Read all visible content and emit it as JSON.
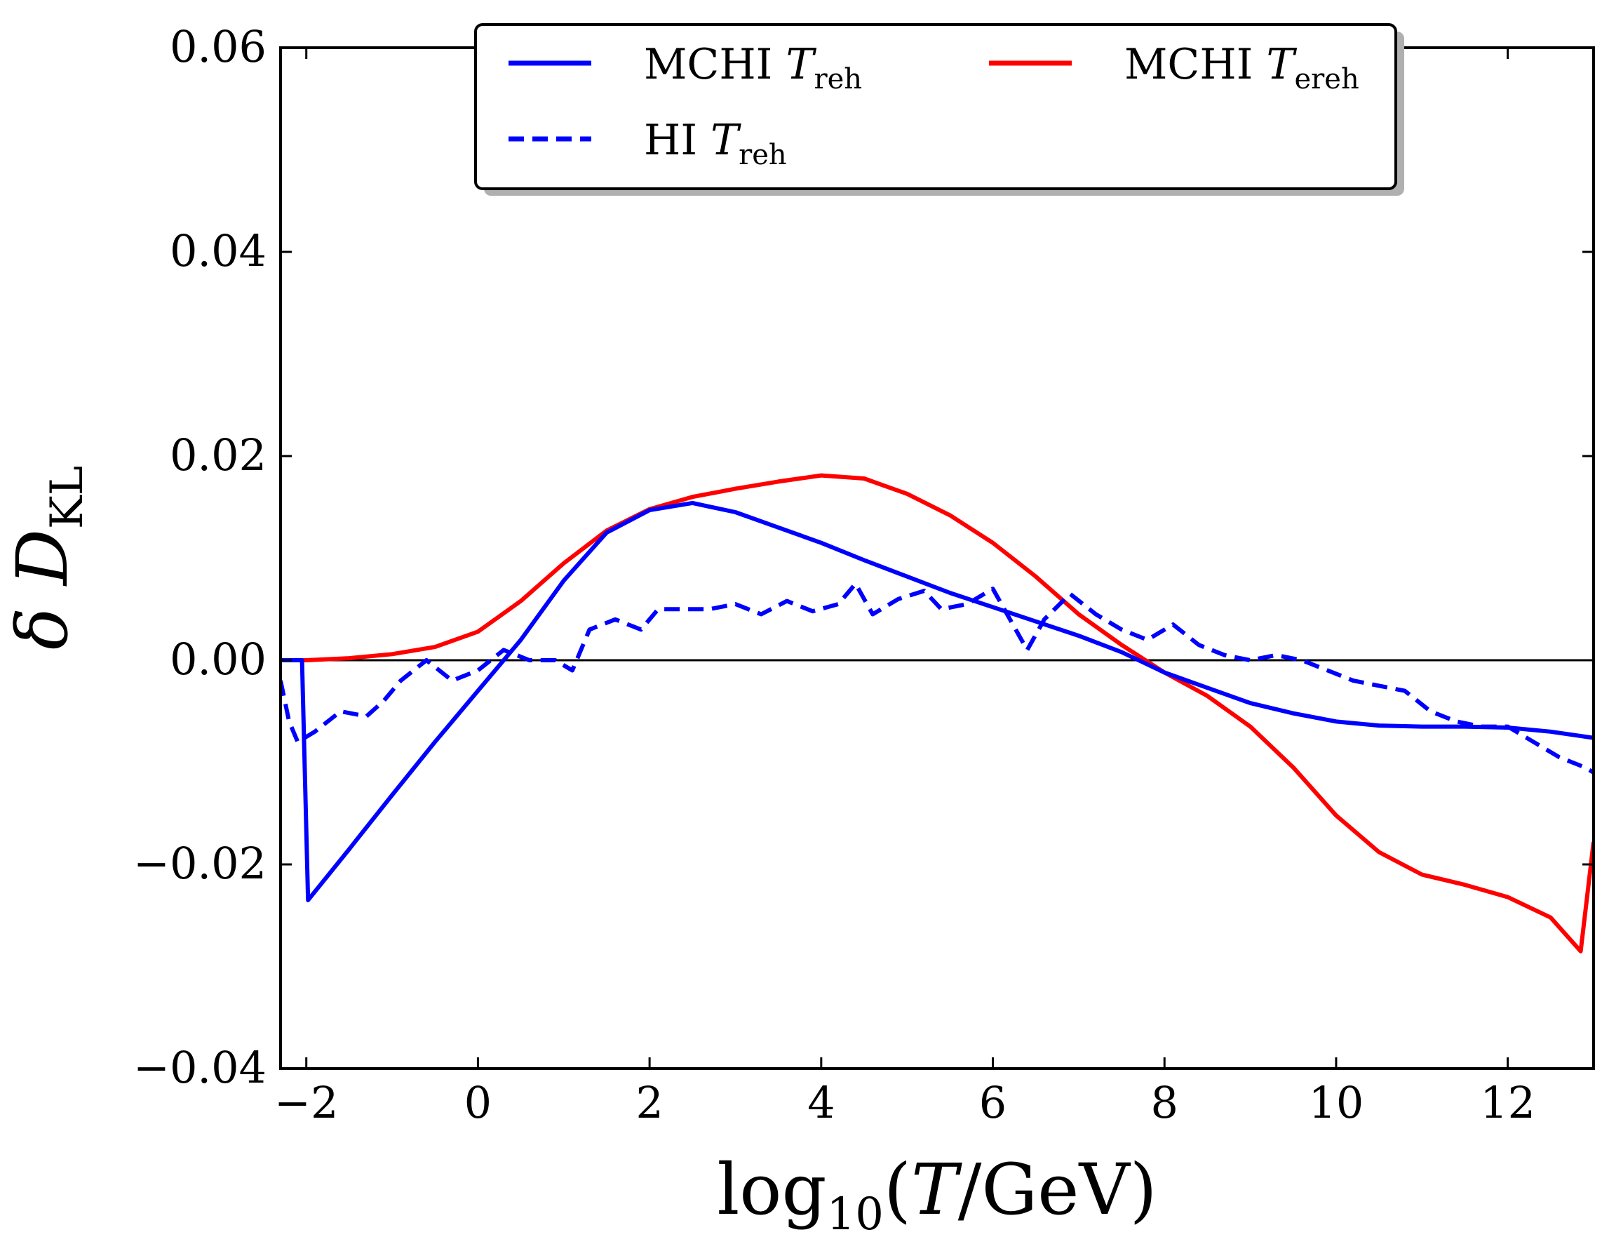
{
  "chart_data": {
    "type": "line",
    "title": "",
    "xlabel": "log10(T/GeV)",
    "xlabel_parts": {
      "pre": "log",
      "sub": "10",
      "open": "(",
      "var": "T",
      "post": "/GeV)"
    },
    "ylabel": "δ D_KL",
    "ylabel_parts": {
      "delta": "δ",
      "var": "D",
      "sub": "KL"
    },
    "xlim": [
      -2.3,
      13.0
    ],
    "ylim": [
      -0.04,
      0.06
    ],
    "xticks": [
      -2,
      0,
      2,
      4,
      6,
      8,
      10,
      12
    ],
    "xtick_labels": [
      "−2",
      "0",
      "2",
      "4",
      "6",
      "8",
      "10",
      "12"
    ],
    "yticks": [
      -0.04,
      -0.02,
      0.0,
      0.02,
      0.04,
      0.06
    ],
    "ytick_labels": [
      "−0.04",
      "−0.02",
      "0.00",
      "0.02",
      "0.04",
      "0.06"
    ],
    "grid": false,
    "legend_position": "top-center",
    "reference_line": {
      "y": 0.0,
      "color": "#000000"
    },
    "series": [
      {
        "name": "MCHI T_reh",
        "legend": {
          "main": "MCHI ",
          "var": "T",
          "sub": "reh"
        },
        "color": "#0000ff",
        "style": "solid",
        "x": [
          -2.3,
          -2.05,
          -1.98,
          -1.5,
          -1.0,
          -0.5,
          0.0,
          0.5,
          1.0,
          1.5,
          2.0,
          2.5,
          3.0,
          3.5,
          4.0,
          4.5,
          5.0,
          5.5,
          6.0,
          6.5,
          7.0,
          7.5,
          8.0,
          8.5,
          9.0,
          9.5,
          10.0,
          10.5,
          11.0,
          11.5,
          12.0,
          12.5,
          13.0
        ],
        "values": [
          0.0,
          0.0,
          -0.0235,
          -0.0185,
          -0.0132,
          -0.008,
          -0.003,
          0.002,
          0.0078,
          0.0125,
          0.0147,
          0.0154,
          0.0145,
          0.013,
          0.0115,
          0.0098,
          0.0082,
          0.0066,
          0.0052,
          0.0038,
          0.0024,
          0.0008,
          -0.0012,
          -0.0027,
          -0.0042,
          -0.0052,
          -0.006,
          -0.0064,
          -0.0065,
          -0.0065,
          -0.0066,
          -0.007,
          -0.0076
        ]
      },
      {
        "name": "HI T_reh",
        "legend": {
          "main": "HI ",
          "var": "T",
          "sub": "reh"
        },
        "color": "#0000ff",
        "style": "dashed",
        "x": [
          -2.3,
          -2.2,
          -2.1,
          -1.9,
          -1.6,
          -1.3,
          -1.1,
          -0.9,
          -0.6,
          -0.3,
          0.0,
          0.3,
          0.6,
          0.9,
          1.1,
          1.3,
          1.6,
          1.9,
          2.1,
          2.4,
          2.7,
          3.0,
          3.3,
          3.6,
          3.9,
          4.2,
          4.4,
          4.6,
          4.9,
          5.2,
          5.4,
          5.7,
          6.0,
          6.2,
          6.4,
          6.6,
          6.9,
          7.2,
          7.5,
          7.8,
          8.1,
          8.4,
          8.7,
          9.0,
          9.3,
          9.6,
          9.9,
          10.2,
          10.5,
          10.8,
          11.1,
          11.4,
          11.7,
          12.0,
          12.3,
          12.6,
          12.9,
          13.0
        ],
        "values": [
          -0.002,
          -0.006,
          -0.008,
          -0.007,
          -0.005,
          -0.0055,
          -0.004,
          -0.002,
          0.0,
          -0.002,
          -0.001,
          0.001,
          0.0,
          0.0,
          -0.001,
          0.003,
          0.004,
          0.003,
          0.005,
          0.005,
          0.005,
          0.0055,
          0.0045,
          0.0058,
          0.0048,
          0.0055,
          0.0075,
          0.0045,
          0.006,
          0.0068,
          0.005,
          0.0055,
          0.007,
          0.004,
          0.001,
          0.004,
          0.0065,
          0.0045,
          0.003,
          0.002,
          0.0035,
          0.0015,
          0.0005,
          0.0,
          0.0005,
          0.0,
          -0.001,
          -0.002,
          -0.0025,
          -0.003,
          -0.005,
          -0.006,
          -0.0065,
          -0.0065,
          -0.008,
          -0.0095,
          -0.0105,
          -0.011
        ]
      },
      {
        "name": "MCHI T_ereh",
        "legend": {
          "main": "MCHI ",
          "var": "T",
          "sub": "ereh"
        },
        "color": "#ff0000",
        "style": "solid",
        "x": [
          -2.3,
          -2.0,
          -1.5,
          -1.0,
          -0.5,
          0.0,
          0.5,
          1.0,
          1.5,
          2.0,
          2.5,
          3.0,
          3.5,
          4.0,
          4.5,
          5.0,
          5.5,
          6.0,
          6.5,
          7.0,
          7.5,
          8.0,
          8.5,
          9.0,
          9.5,
          10.0,
          10.5,
          11.0,
          11.5,
          12.0,
          12.5,
          12.85,
          13.0
        ],
        "values": [
          0.0,
          0.0,
          0.0002,
          0.0006,
          0.0013,
          0.0028,
          0.0058,
          0.0095,
          0.0127,
          0.0148,
          0.016,
          0.0168,
          0.0175,
          0.0181,
          0.0178,
          0.0163,
          0.0142,
          0.0115,
          0.0082,
          0.0045,
          0.0015,
          -0.0012,
          -0.0035,
          -0.0065,
          -0.0105,
          -0.0152,
          -0.0188,
          -0.021,
          -0.022,
          -0.0232,
          -0.0252,
          -0.0285,
          -0.0178
        ]
      }
    ]
  }
}
